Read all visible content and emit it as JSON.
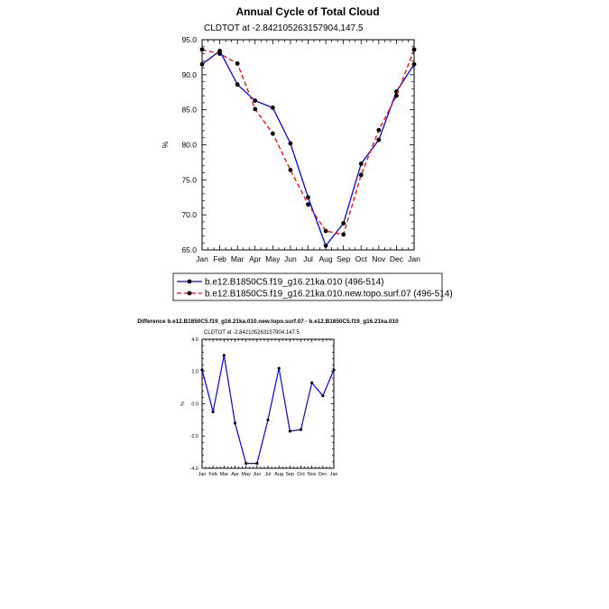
{
  "chart_data": [
    {
      "type": "line",
      "title": "Annual Cycle of Total Cloud",
      "subtitle": "CLDTOT at -2.842105263157904,147.5",
      "ylabel": "%",
      "xlabel": "",
      "ylim": [
        65,
        95
      ],
      "yticks": [
        "65.0",
        "70.0",
        "75.0",
        "80.0",
        "85.0",
        "90.0",
        "95.0"
      ],
      "ytick_values": [
        65,
        70,
        75,
        80,
        85,
        90,
        95
      ],
      "categories": [
        "Jan",
        "Feb",
        "Mar",
        "Apr",
        "May",
        "Jun",
        "Jul",
        "Aug",
        "Sep",
        "Oct",
        "Nov",
        "Dec",
        "Jan"
      ],
      "legend_position": "below",
      "series": [
        {
          "name": "b.e12.B1850C5.f19_g16.21ka.010 (496-514)",
          "color": "#0000ff",
          "dash": "solid",
          "values": [
            91.5,
            93.4,
            88.6,
            86.3,
            85.3,
            80.2,
            72.5,
            65.6,
            68.8,
            77.3,
            80.7,
            87.6,
            91.5
          ]
        },
        {
          "name": "b.e12.B1850C5.f19_g16.21ka.010.new.topo.surf.07 (496-514)",
          "color": "#ff0000",
          "dash": "dashed",
          "values": [
            93.6,
            93.0,
            91.6,
            85.1,
            81.6,
            76.4,
            71.5,
            67.7,
            67.2,
            75.7,
            82.1,
            87.0,
            93.6
          ]
        }
      ]
    },
    {
      "type": "line",
      "title": "Difference b.e12.B1850C5.f19_g16.21ka.010.new.topo.surf.07 - b.e12.B1850C5.f19_g16.21ka.010",
      "subtitle": "CLDTOT at -2.842105263157904,147.5",
      "ylabel": "%",
      "xlabel": "",
      "ylim": [
        -4,
        4
      ],
      "yticks": [
        "-4.0",
        "-2.0",
        "0.0",
        "2.0",
        "4.0"
      ],
      "ytick_values": [
        -4,
        -2,
        0,
        2,
        4
      ],
      "categories": [
        "Jan",
        "Feb",
        "Mar",
        "Apr",
        "May",
        "Jun",
        "Jul",
        "Aug",
        "Sep",
        "Oct",
        "Nov",
        "Dec",
        "Jan"
      ],
      "series": [
        {
          "name": "Difference",
          "color": "#0000ff",
          "dash": "solid",
          "values": [
            2.1,
            -0.5,
            3.0,
            -1.2,
            -3.7,
            -3.7,
            -1.0,
            2.2,
            -1.7,
            -1.6,
            1.3,
            0.5,
            2.1
          ]
        }
      ]
    }
  ]
}
